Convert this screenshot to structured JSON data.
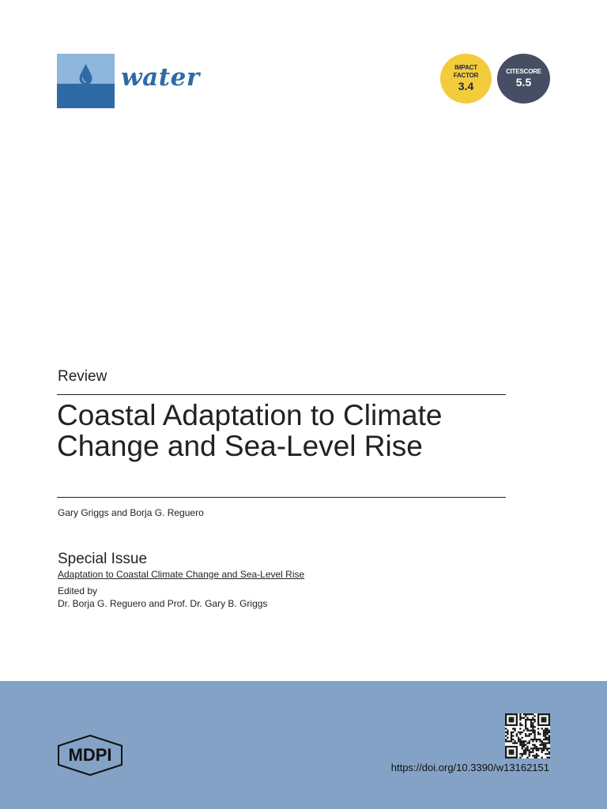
{
  "header": {
    "journal_name": "water",
    "metrics": {
      "impact_factor": {
        "label_line1": "IMPACT",
        "label_line2": "FACTOR",
        "value": "3.4"
      },
      "citescore": {
        "label": "CITESCORE",
        "value": "5.5"
      }
    }
  },
  "article": {
    "type": "Review",
    "title_line1": "Coastal Adaptation to Climate",
    "title_line2": "Change and Sea-Level Rise",
    "authors": "Gary Griggs and Borja G. Reguero"
  },
  "special_issue": {
    "heading": "Special Issue",
    "title": "Adaptation to Coastal Climate Change and Sea-Level Rise",
    "edited_by_label": "Edited by",
    "editors": "Dr. Borja G. Reguero and Prof. Dr. Gary B. Griggs"
  },
  "footer": {
    "publisher_logo": "MDPI",
    "doi": "https://doi.org/10.3390/w13162151"
  },
  "colors": {
    "journal_blue": "#2f6aa6",
    "impact_badge": "#f3cc3c",
    "citescore_badge": "#454e63",
    "footer_band": "#83a2c6"
  },
  "icons": [
    "water-drop-icon",
    "qr-code-icon",
    "mdpi-logo-icon"
  ]
}
